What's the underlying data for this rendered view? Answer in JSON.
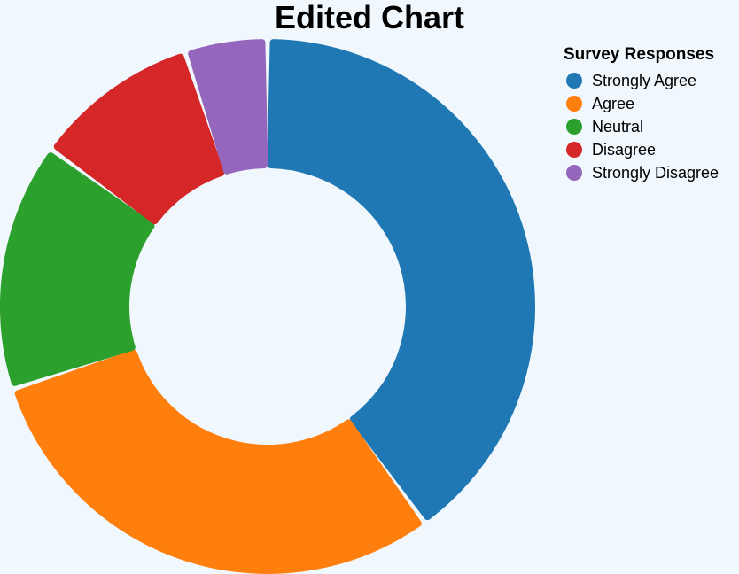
{
  "chart_data": {
    "type": "pie",
    "title": "Edited Chart",
    "legend_title": "Survey Responses",
    "legend_position": "top-right",
    "categories": [
      "Strongly Agree",
      "Agree",
      "Neutral",
      "Disagree",
      "Strongly Disagree"
    ],
    "values": [
      40,
      30,
      15,
      10,
      5
    ],
    "colors": [
      "#1f77b4",
      "#ff7f0e",
      "#2ca02c",
      "#d62728",
      "#9467bd"
    ],
    "donut": true
  }
}
